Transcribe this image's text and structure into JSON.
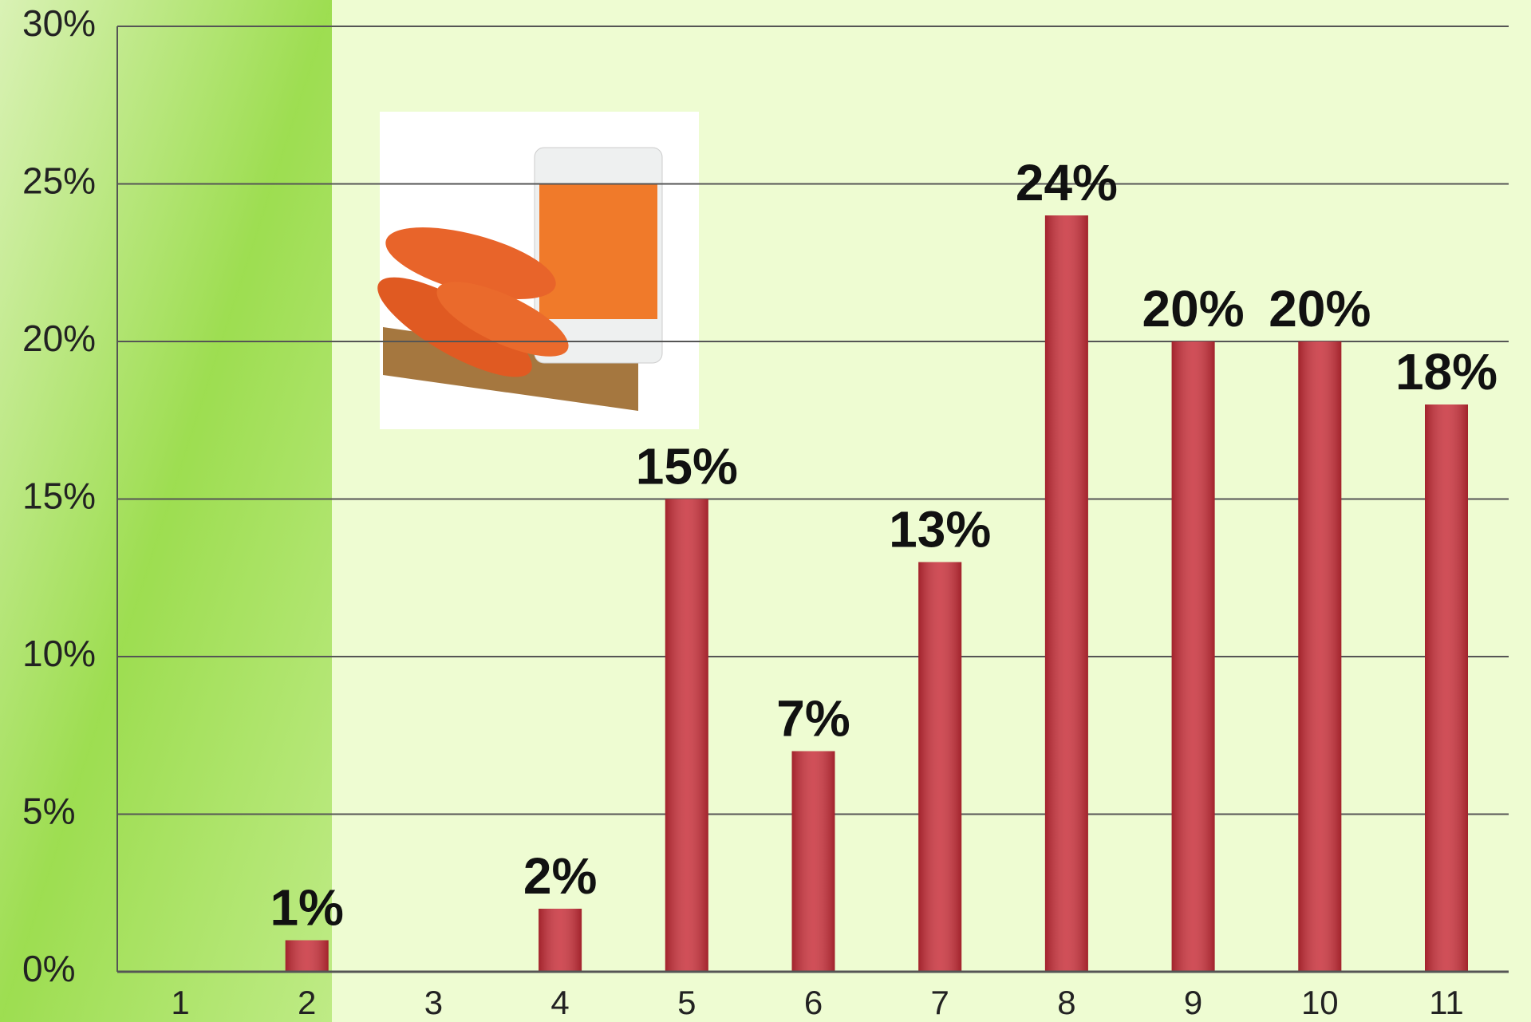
{
  "chart_data": {
    "type": "bar",
    "categories": [
      "1",
      "2",
      "3",
      "4",
      "5",
      "6",
      "7",
      "8",
      "9",
      "10",
      "11"
    ],
    "values": [
      null,
      1,
      null,
      2,
      15,
      7,
      13,
      24,
      20,
      20,
      18
    ],
    "value_labels": [
      null,
      "1%",
      null,
      "2%",
      "15%",
      "7%",
      "13%",
      "24%",
      "20%",
      "20%",
      "18%"
    ],
    "color": "#c8303a",
    "ylim": [
      0,
      30
    ],
    "yticks": [
      {
        "value": 0,
        "label": "0%"
      },
      {
        "value": 5,
        "label": "5%"
      },
      {
        "value": 10,
        "label": "10%"
      },
      {
        "value": 15,
        "label": "15%"
      },
      {
        "value": 20,
        "label": "20%"
      },
      {
        "value": 25,
        "label": "25%"
      },
      {
        "value": 30,
        "label": "30%"
      }
    ],
    "grid": true
  }
}
